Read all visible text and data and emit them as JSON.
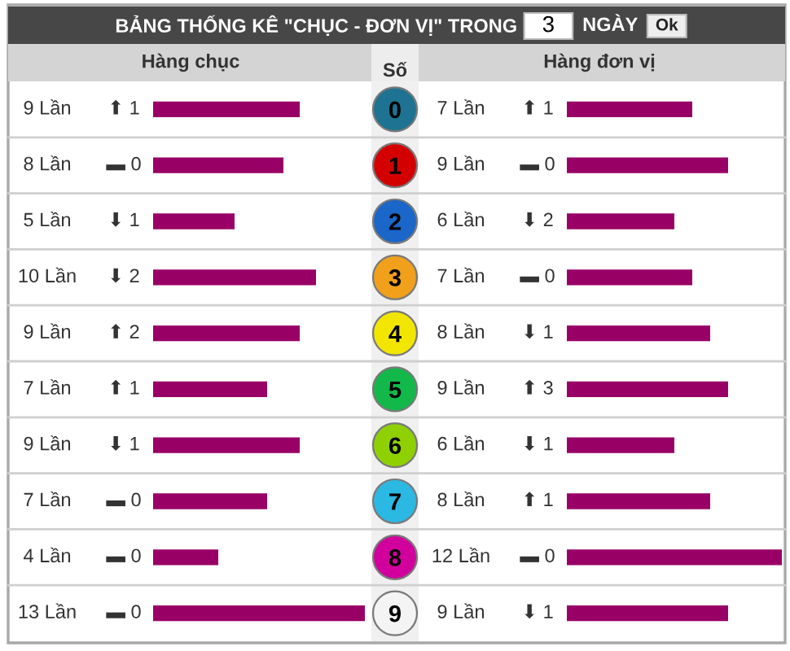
{
  "chart_data": [
    {
      "type": "bar",
      "orientation": "horizontal",
      "title": "Hàng chục",
      "ylabel": "Số",
      "categories": [
        "0",
        "1",
        "2",
        "3",
        "4",
        "5",
        "6",
        "7",
        "8",
        "9"
      ],
      "values": [
        9,
        8,
        5,
        10,
        9,
        7,
        9,
        7,
        4,
        13
      ],
      "value_labels": [
        "9 Lần",
        "8 Lần",
        "5 Lần",
        "10 Lần",
        "9 Lần",
        "7 Lần",
        "9 Lần",
        "7 Lần",
        "4 Lần",
        "13 Lần"
      ],
      "color": "#990066",
      "annotations": [
        "BẢNG THỐNG KÊ \"CHỤC - ĐƠN VỊ\" TRONG",
        "3",
        "NGÀY",
        "Ok",
        "⬆ 1",
        "▬ 0",
        "⬇ 1",
        "⬇ 2",
        "⬆ 2",
        "⬆ 1",
        "⬇ 1",
        "▬ 0",
        "▬ 0",
        "▬ 0"
      ]
    },
    {
      "type": "bar",
      "orientation": "horizontal",
      "title": "Hàng đơn vị",
      "tick_labels": false,
      "categories": [
        "0",
        "1",
        "2",
        "3",
        "4",
        "5",
        "6",
        "7",
        "8",
        "9"
      ],
      "values": [
        7,
        9,
        6,
        7,
        8,
        9,
        6,
        8,
        12,
        9
      ],
      "value_labels": [
        "7 Lần",
        "9 Lần",
        "6 Lần",
        "7 Lần",
        "8 Lần",
        "9 Lần",
        "6 Lần",
        "8 Lần",
        "12 Lần",
        "9 Lần"
      ],
      "color": "#990066",
      "annotations": [
        "⬆ 1",
        "▬ 0",
        "⬇ 2",
        "▬ 0",
        "⬇ 1",
        "⬆ 3",
        "⬇ 1",
        "⬆ 1",
        "▬ 0",
        "⬇ 1"
      ]
    }
  ]
}
